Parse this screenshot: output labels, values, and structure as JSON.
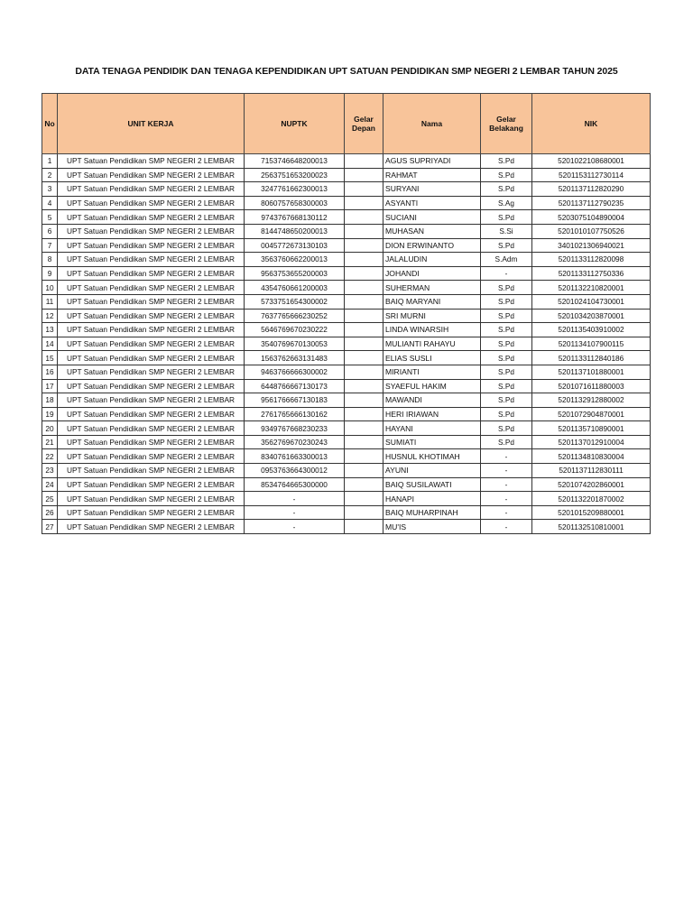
{
  "title": "DATA TENAGA PENDIDIK DAN TENAGA KEPENDIDIKAN UPT SATUAN PENDIDIKAN SMP NEGERI 2 LEMBAR TAHUN 2025",
  "headers": {
    "no": "No",
    "unit": "UNIT KERJA",
    "nuptk": "NUPTK",
    "gelar_depan_1": "Gelar",
    "gelar_depan_2": "Depan",
    "nama": "Nama",
    "gelar_belakang_1": "Gelar",
    "gelar_belakang_2": "Belakang",
    "nik": "NIK"
  },
  "header_color": "#F8C49A",
  "rows": [
    {
      "no": "1",
      "unit": "UPT Satuan Pendidikan SMP NEGERI 2 LEMBAR",
      "nuptk": "7153746648200013",
      "gd": "",
      "nama": "AGUS SUPRIYADI",
      "gb": "S.Pd",
      "nik": "5201022108680001"
    },
    {
      "no": "2",
      "unit": "UPT Satuan Pendidikan SMP NEGERI 2 LEMBAR",
      "nuptk": "2563751653200023",
      "gd": "",
      "nama": "RAHMAT",
      "gb": "S.Pd",
      "nik": "5201153112730114"
    },
    {
      "no": "3",
      "unit": "UPT Satuan Pendidikan SMP NEGERI 2 LEMBAR",
      "nuptk": "3247761662300013",
      "gd": "",
      "nama": "SURYANI",
      "gb": "S.Pd",
      "nik": "5201137112820290"
    },
    {
      "no": "4",
      "unit": "UPT Satuan Pendidikan SMP NEGERI 2 LEMBAR",
      "nuptk": "8060757658300003",
      "gd": "",
      "nama": "ASYANTI",
      "gb": "S.Ag",
      "nik": "5201137112790235"
    },
    {
      "no": "5",
      "unit": "UPT Satuan Pendidikan SMP NEGERI 2 LEMBAR",
      "nuptk": "9743767668130112",
      "gd": "",
      "nama": "SUCIANI",
      "gb": "S.Pd",
      "nik": "5203075104890004"
    },
    {
      "no": "6",
      "unit": "UPT Satuan Pendidikan SMP NEGERI 2 LEMBAR",
      "nuptk": "8144748650200013",
      "gd": "",
      "nama": "MUHASAN",
      "gb": "S.Si",
      "nik": "5201010107750526"
    },
    {
      "no": "7",
      "unit": "UPT Satuan Pendidikan SMP NEGERI 2 LEMBAR",
      "nuptk": "0045772673130103",
      "gd": "",
      "nama": "DION ERWINANTO",
      "gb": "S.Pd",
      "nik": "3401021306940021"
    },
    {
      "no": "8",
      "unit": "UPT Satuan Pendidikan SMP NEGERI 2 LEMBAR",
      "nuptk": "3563760662200013",
      "gd": "",
      "nama": "JALALUDIN",
      "gb": "S.Adm",
      "nik": "5201133112820098"
    },
    {
      "no": "9",
      "unit": "UPT Satuan Pendidikan SMP NEGERI 2 LEMBAR",
      "nuptk": "9563753655200003",
      "gd": "",
      "nama": "JOHANDI",
      "gb": "-",
      "nik": "5201133112750336"
    },
    {
      "no": "10",
      "unit": "UPT Satuan Pendidikan SMP NEGERI 2 LEMBAR",
      "nuptk": "4354760661200003",
      "gd": "",
      "nama": "SUHERMAN",
      "gb": "S.Pd",
      "nik": "5201132210820001"
    },
    {
      "no": "11",
      "unit": "UPT Satuan Pendidikan SMP NEGERI 2 LEMBAR",
      "nuptk": "5733751654300002",
      "gd": "",
      "nama": "BAIQ MARYANI",
      "gb": "S.Pd",
      "nik": "5201024104730001"
    },
    {
      "no": "12",
      "unit": "UPT Satuan Pendidikan SMP NEGERI 2 LEMBAR",
      "nuptk": "7637765666230252",
      "gd": "",
      "nama": "SRI MURNI",
      "gb": "S.Pd",
      "nik": "5201034203870001"
    },
    {
      "no": "13",
      "unit": "UPT Satuan Pendidikan SMP NEGERI 2 LEMBAR",
      "nuptk": "5646769670230222",
      "gd": "",
      "nama": "LINDA WINARSIH",
      "gb": "S.Pd",
      "nik": "5201135403910002"
    },
    {
      "no": "14",
      "unit": "UPT Satuan Pendidikan SMP NEGERI 2 LEMBAR",
      "nuptk": "3540769670130053",
      "gd": "",
      "nama": "MULIANTI RAHAYU",
      "gb": "S.Pd",
      "nik": "5201134107900115"
    },
    {
      "no": "15",
      "unit": "UPT Satuan Pendidikan SMP NEGERI 2 LEMBAR",
      "nuptk": "1563762663131483",
      "gd": "",
      "nama": "ELIAS SUSLI",
      "gb": "S.Pd",
      "nik": "5201133112840186"
    },
    {
      "no": "16",
      "unit": "UPT Satuan Pendidikan SMP NEGERI 2 LEMBAR",
      "nuptk": "9463766666300002",
      "gd": "",
      "nama": "MIRIANTI",
      "gb": "S.Pd",
      "nik": "5201137101880001"
    },
    {
      "no": "17",
      "unit": "UPT Satuan Pendidikan SMP NEGERI 2 LEMBAR",
      "nuptk": "6448766667130173",
      "gd": "",
      "nama": "SYAEFUL HAKIM",
      "gb": "S.Pd",
      "nik": "5201071611880003"
    },
    {
      "no": "18",
      "unit": "UPT Satuan Pendidikan SMP NEGERI 2 LEMBAR",
      "nuptk": "9561766667130183",
      "gd": "",
      "nama": "MAWANDI",
      "gb": "S.Pd",
      "nik": "5201132912880002"
    },
    {
      "no": "19",
      "unit": "UPT Satuan Pendidikan SMP NEGERI 2 LEMBAR",
      "nuptk": "2761765666130162",
      "gd": "",
      "nama": "HERI IRIAWAN",
      "gb": "S.Pd",
      "nik": "5201072904870001"
    },
    {
      "no": "20",
      "unit": "UPT Satuan Pendidikan SMP NEGERI 2 LEMBAR",
      "nuptk": "9349767668230233",
      "gd": "",
      "nama": "HAYANI",
      "gb": "S.Pd",
      "nik": "5201135710890001"
    },
    {
      "no": "21",
      "unit": "UPT Satuan Pendidikan SMP NEGERI 2 LEMBAR",
      "nuptk": "3562769670230243",
      "gd": "",
      "nama": "SUMIATI",
      "gb": "S.Pd",
      "nik": "5201137012910004"
    },
    {
      "no": "22",
      "unit": "UPT Satuan Pendidikan SMP NEGERI 2 LEMBAR",
      "nuptk": "8340761663300013",
      "gd": "",
      "nama": "HUSNUL KHOTIMAH",
      "gb": "-",
      "nik": "5201134810830004"
    },
    {
      "no": "23",
      "unit": "UPT Satuan Pendidikan SMP NEGERI 2 LEMBAR",
      "nuptk": "0953763664300012",
      "gd": "",
      "nama": "AYUNI",
      "gb": "-",
      "nik": "5201137112830111"
    },
    {
      "no": "24",
      "unit": "UPT Satuan Pendidikan SMP NEGERI 2 LEMBAR",
      "nuptk": "8534764665300000",
      "gd": "",
      "nama": "BAIQ SUSILAWATI",
      "gb": "-",
      "nik": "5201074202860001"
    },
    {
      "no": "25",
      "unit": "UPT Satuan Pendidikan SMP NEGERI 2 LEMBAR",
      "nuptk": "-",
      "gd": "",
      "nama": "HANAPI",
      "gb": "-",
      "nik": "5201132201870002"
    },
    {
      "no": "26",
      "unit": "UPT Satuan Pendidikan SMP NEGERI 2 LEMBAR",
      "nuptk": "-",
      "gd": "",
      "nama": "BAIQ MUHARPINAH",
      "gb": "-",
      "nik": "5201015209880001"
    },
    {
      "no": "27",
      "unit": "UPT Satuan Pendidikan SMP NEGERI 2 LEMBAR",
      "nuptk": "-",
      "gd": "",
      "nama": "MU'IS",
      "gb": "-",
      "nik": "5201132510810001"
    }
  ]
}
